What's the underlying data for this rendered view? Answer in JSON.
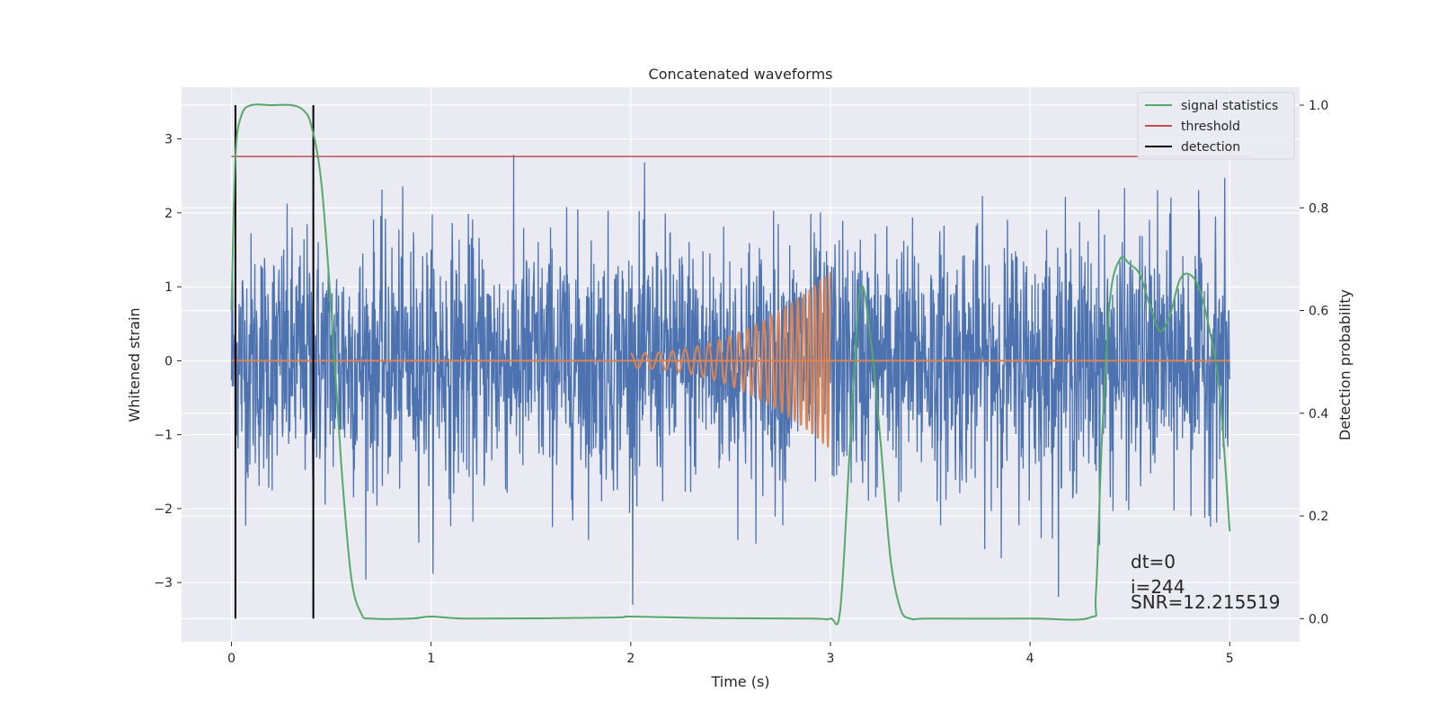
{
  "chart_data": {
    "type": "line",
    "title": "Concatenated waveforms",
    "xlabel": "Time (s)",
    "ylabel": "Whitened strain",
    "y2label": "Detection probability",
    "xlim": [
      -0.25,
      5.35
    ],
    "ylim": [
      -3.8,
      3.7
    ],
    "y2lim": [
      -0.045,
      1.035
    ],
    "x_ticks": [
      0,
      1,
      2,
      3,
      4,
      5
    ],
    "y_ticks": [
      -3,
      -2,
      -1,
      0,
      1,
      2,
      3
    ],
    "y2_ticks": [
      0.0,
      0.2,
      0.4,
      0.6,
      0.8,
      1.0
    ],
    "x_tick_labels": [
      "0",
      "1",
      "2",
      "3",
      "4",
      "5"
    ],
    "y_tick_labels": [
      "−3",
      "−2",
      "−1",
      "0",
      "1",
      "2",
      "3"
    ],
    "y2_tick_labels": [
      "0.0",
      "0.2",
      "0.4",
      "0.6",
      "0.8",
      "1.0"
    ],
    "grid": true,
    "legend_position": "top-right",
    "legend": [
      "signal statistics",
      "threshold",
      "detection"
    ],
    "colors": {
      "strain": "#4c72b0",
      "injected": "#dd8452",
      "signal_statistics": "#55a868",
      "threshold": "#c44e52",
      "detection": "#000000",
      "plot_background": "#eaeaf2",
      "grid": "#ffffff"
    },
    "series": [
      {
        "name": "signal statistics",
        "axis": "right",
        "x": [
          0.0,
          0.02,
          0.05,
          0.1,
          0.2,
          0.3,
          0.36,
          0.4,
          0.45,
          0.5,
          0.55,
          0.6,
          0.65,
          0.7,
          0.9,
          1.0,
          1.2,
          1.9,
          2.0,
          2.4,
          2.9,
          3.0,
          3.05,
          3.1,
          3.15,
          3.2,
          3.25,
          3.3,
          3.35,
          3.4,
          3.5,
          4.0,
          4.3,
          4.33,
          4.36,
          4.4,
          4.45,
          4.5,
          4.55,
          4.6,
          4.65,
          4.7,
          4.75,
          4.8,
          4.85,
          4.9,
          4.95,
          5.0
        ],
        "values": [
          0.6,
          0.9,
          0.98,
          1.0,
          1.0,
          1.0,
          0.99,
          0.96,
          0.85,
          0.6,
          0.3,
          0.08,
          0.01,
          0.0,
          0.0,
          0.004,
          0.0,
          0.002,
          0.004,
          0.001,
          0.0,
          0.0,
          0.02,
          0.35,
          0.64,
          0.55,
          0.35,
          0.12,
          0.02,
          0.0,
          0.0,
          0.0,
          0.002,
          0.05,
          0.35,
          0.62,
          0.7,
          0.69,
          0.67,
          0.61,
          0.56,
          0.59,
          0.66,
          0.67,
          0.64,
          0.56,
          0.44,
          0.17
        ]
      },
      {
        "name": "threshold",
        "axis": "right",
        "x": [
          0.0,
          5.1
        ],
        "values": [
          0.9,
          0.9
        ]
      },
      {
        "name": "detection",
        "axis": "right",
        "x": [
          0.02,
          0.41
        ],
        "values": [
          1.0,
          1.0
        ]
      },
      {
        "axis": "left",
        "x": [
          0.0,
          2.0,
          3.0,
          5.0
        ],
        "values": [
          0.0,
          0.0,
          0.0,
          0.0
        ]
      },
      {
        "axis": "left",
        "x": [
          2.0,
          3.0
        ],
        "values": [
          0.1,
          1.2
        ]
      },
      {
        "axis": "left",
        "x": [
          0.0,
          5.0
        ],
        "values": [
          -3.3,
          3.35
        ]
      }
    ],
    "annotations": [
      "dt=0",
      "i=244",
      "SNR=12.215519"
    ]
  }
}
